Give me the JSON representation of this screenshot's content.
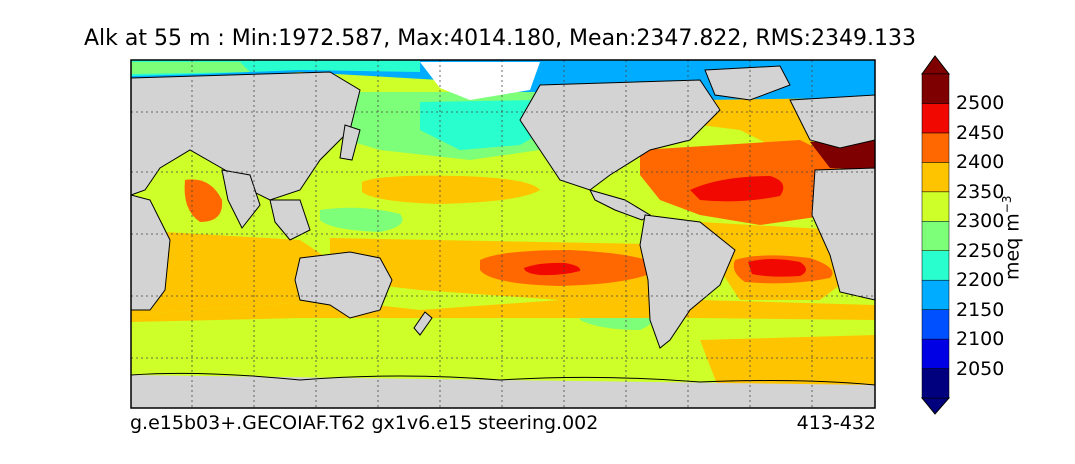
{
  "title": "Alk at 55 m : Min:1972.587, Max:4014.180, Mean:2347.822, RMS:2349.133",
  "footer": {
    "left": "g.e15b03+.GECOIAF.T62 gx1v6.e15 steering.002",
    "right": "413-432"
  },
  "colorbar": {
    "label_text": "meq m",
    "label_exponent": "−3",
    "ticks": [
      "2050",
      "2100",
      "2150",
      "2200",
      "2250",
      "2300",
      "2350",
      "2400",
      "2450",
      "2500"
    ],
    "levels": [
      {
        "range": "<2050",
        "color": "#00007f"
      },
      {
        "range": "2050-2100",
        "color": "#0000e5"
      },
      {
        "range": "2100-2150",
        "color": "#0050ff"
      },
      {
        "range": "2150-2200",
        "color": "#00acff"
      },
      {
        "range": "2200-2250",
        "color": "#29ffce"
      },
      {
        "range": "2250-2300",
        "color": "#7dff7a"
      },
      {
        "range": "2300-2350",
        "color": "#ceff29"
      },
      {
        "range": "2350-2400",
        "color": "#ffc400"
      },
      {
        "range": "2400-2450",
        "color": "#ff6800"
      },
      {
        "range": "2450-2500",
        "color": "#f10800"
      },
      {
        "range": ">2500",
        "color": "#7f0000"
      }
    ],
    "extend": "both"
  },
  "map": {
    "projection": "cylindrical",
    "land_color": "#d3d3d3",
    "ice_color": "#ffffff",
    "gridlines": "dotted"
  }
}
